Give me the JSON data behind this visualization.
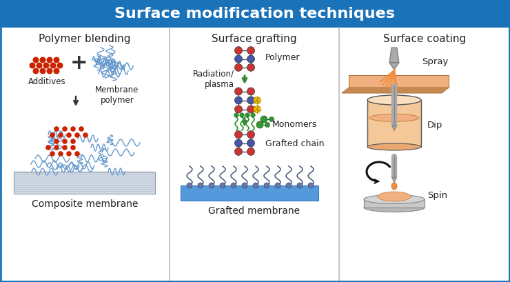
{
  "title": "Surface modification techniques",
  "title_color": "#ffffff",
  "title_bg_color": "#1a72b8",
  "panel_bg_color": "#ffffff",
  "border_color": "#1a72b8",
  "section_titles": [
    "Polymer blending",
    "Surface grafting",
    "Surface coating"
  ],
  "section_labels_bottom": [
    "Composite membrane",
    "Grafted membrane",
    ""
  ],
  "subsection_labels": {
    "blending": [
      "Additives",
      "Membrane\npolymer"
    ],
    "grafting": [
      "Radiation/\nplasma",
      "Monomers",
      "Grafted chain"
    ],
    "coating": [
      "Spray",
      "Dip",
      "Spin"
    ]
  },
  "colors": {
    "red_dot": "#cc2200",
    "blue_strand": "#6699cc",
    "arrow_black": "#222222",
    "arrow_green": "#338833",
    "polymer_red": "#cc3333",
    "polymer_blue": "#4444aa",
    "monomer_green": "#339933",
    "peach": "#f0b080",
    "peach_light": "#f5c89a",
    "gray_light": "#c8c8c8",
    "gray_mid": "#999999",
    "blue_surface": "#5599cc",
    "divider": "#bbbbbb"
  }
}
